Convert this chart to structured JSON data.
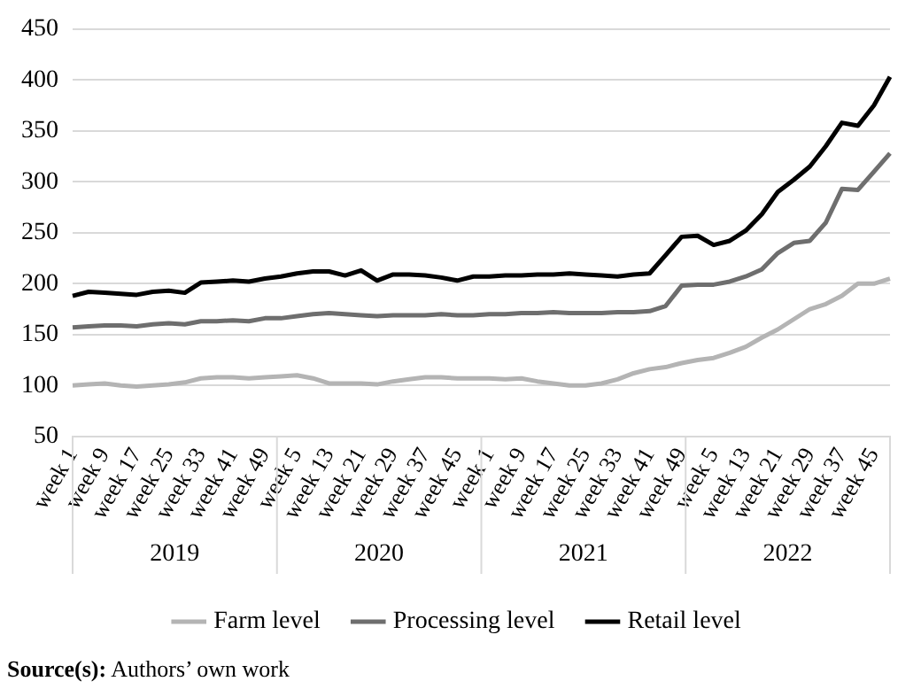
{
  "chart_data": {
    "type": "line",
    "categories": [
      "week 1",
      null,
      "week 9",
      null,
      "week 17",
      null,
      "week 25",
      null,
      "week 33",
      null,
      "week 41",
      null,
      "week 49",
      null,
      "week 5",
      null,
      "week 13",
      null,
      "week 21",
      null,
      "week 29",
      null,
      "week 37",
      null,
      "week 45",
      null,
      "week 1",
      null,
      "week 9",
      null,
      "week 17",
      null,
      "week 25",
      null,
      "week 33",
      null,
      "week 41",
      null,
      "week 49",
      null,
      "week 5",
      null,
      "week 13",
      null,
      "week 21",
      null,
      "week 29",
      null,
      "week 37",
      null,
      "week 45",
      null
    ],
    "series": [
      {
        "name": "Farm level",
        "color": "#b4b4b4",
        "values": [
          100,
          101,
          102,
          100,
          99,
          100,
          101,
          103,
          107,
          108,
          108,
          107,
          108,
          109,
          110,
          107,
          102,
          102,
          102,
          101,
          104,
          106,
          108,
          108,
          107,
          107,
          107,
          106,
          107,
          104,
          102,
          100,
          100,
          102,
          106,
          112,
          116,
          118,
          122,
          125,
          127,
          132,
          138,
          147,
          155,
          165,
          175,
          180,
          188,
          200,
          200,
          205
        ]
      },
      {
        "name": "Processing level",
        "color": "#6e6e6e",
        "values": [
          157,
          158,
          159,
          159,
          158,
          160,
          161,
          160,
          163,
          163,
          164,
          163,
          166,
          166,
          168,
          170,
          171,
          170,
          169,
          168,
          169,
          169,
          169,
          170,
          169,
          169,
          170,
          170,
          171,
          171,
          172,
          171,
          171,
          171,
          172,
          172,
          173,
          178,
          198,
          199,
          199,
          202,
          207,
          214,
          230,
          240,
          242,
          260,
          293,
          292,
          310,
          328
        ]
      },
      {
        "name": "Retail level",
        "color": "#000000",
        "values": [
          188,
          192,
          191,
          190,
          189,
          192,
          193,
          191,
          201,
          202,
          203,
          202,
          205,
          207,
          210,
          212,
          212,
          208,
          213,
          203,
          209,
          209,
          208,
          206,
          203,
          207,
          207,
          208,
          208,
          209,
          209,
          210,
          209,
          208,
          207,
          209,
          210,
          228,
          246,
          247,
          238,
          242,
          252,
          268,
          290,
          302,
          315,
          335,
          358,
          355,
          375,
          403
        ]
      }
    ],
    "ylim": [
      50,
      450
    ],
    "yticks": [
      50,
      100,
      150,
      200,
      250,
      300,
      350,
      400,
      450
    ],
    "grid": "y",
    "legend": "bottom",
    "marker": "none",
    "line_style": "solid",
    "annotations": [
      "Source(s): Authors’ own work",
      "2019",
      "2020",
      "2021",
      "2022"
    ]
  }
}
